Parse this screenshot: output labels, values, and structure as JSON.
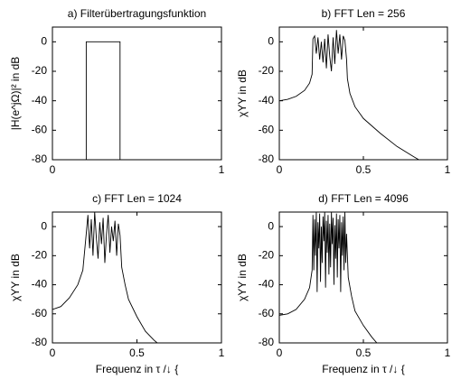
{
  "chart_data": [
    {
      "type": "line",
      "title": "a) Filterübertragungsfunktion",
      "ylabel": "|H(e^jΩ)|² in dB",
      "x": [
        0.2,
        0.2,
        0.4,
        0.4
      ],
      "values": [
        -80,
        0,
        0,
        -80
      ],
      "color": "#000000",
      "xlim": [
        0,
        1
      ],
      "xticks": [
        0,
        1
      ],
      "ylim": [
        -80,
        10
      ],
      "yticks": [
        -80,
        -60,
        -40,
        -20,
        0
      ]
    },
    {
      "type": "line",
      "title": "b) FFT Len = 256",
      "ylabel": "χYY in dB",
      "x": [
        0,
        0.05,
        0.1,
        0.15,
        0.18,
        0.195,
        0.2,
        0.21,
        0.22,
        0.23,
        0.24,
        0.25,
        0.26,
        0.27,
        0.28,
        0.29,
        0.3,
        0.31,
        0.32,
        0.33,
        0.34,
        0.35,
        0.36,
        0.37,
        0.38,
        0.39,
        0.4,
        0.405,
        0.42,
        0.45,
        0.5,
        0.6,
        0.7,
        0.8,
        0.83
      ],
      "values": [
        -40,
        -39,
        -37,
        -33,
        -28,
        -22,
        2,
        4,
        -8,
        3,
        -12,
        0,
        -14,
        2,
        -18,
        5,
        -10,
        -20,
        3,
        -15,
        8,
        -8,
        5,
        -12,
        4,
        1,
        -12,
        -25,
        -35,
        -44,
        -52,
        -62,
        -71,
        -78,
        -80
      ],
      "color": "#000000",
      "xlim": [
        0,
        1
      ],
      "xticks": [
        0,
        0.5,
        1
      ],
      "ylim": [
        -80,
        10
      ],
      "yticks": [
        -80,
        -60,
        -40,
        -20,
        0
      ]
    },
    {
      "type": "line",
      "title": "c) FFT Len = 1024",
      "ylabel": "χYY in dB",
      "xlabel": "Frequenz in τ /↓ {",
      "x": [
        0,
        0.05,
        0.1,
        0.15,
        0.18,
        0.2,
        0.21,
        0.22,
        0.23,
        0.24,
        0.25,
        0.26,
        0.27,
        0.28,
        0.29,
        0.3,
        0.31,
        0.32,
        0.33,
        0.34,
        0.35,
        0.36,
        0.37,
        0.38,
        0.39,
        0.4,
        0.41,
        0.43,
        0.45,
        0.5,
        0.55,
        0.6,
        0.62
      ],
      "values": [
        -57,
        -55,
        -49,
        -40,
        -30,
        -5,
        8,
        -15,
        5,
        -20,
        10,
        -8,
        -22,
        3,
        -12,
        6,
        -25,
        -5,
        8,
        -18,
        0,
        -10,
        4,
        -20,
        2,
        -6,
        -28,
        -40,
        -50,
        -62,
        -72,
        -78,
        -80
      ],
      "color": "#000000",
      "xlim": [
        0,
        1
      ],
      "xticks": [
        0,
        0.5,
        1
      ],
      "ylim": [
        -80,
        10
      ],
      "yticks": [
        -80,
        -60,
        -40,
        -20,
        0
      ]
    },
    {
      "type": "line",
      "title": "d) FFT Len = 4096",
      "ylabel": "χYY in dB",
      "xlabel": "Frequenz in τ /↓ {",
      "x": [
        0,
        0.05,
        0.1,
        0.15,
        0.18,
        0.195,
        0.2,
        0.205,
        0.21,
        0.215,
        0.22,
        0.225,
        0.23,
        0.235,
        0.24,
        0.245,
        0.25,
        0.255,
        0.26,
        0.265,
        0.27,
        0.275,
        0.28,
        0.285,
        0.29,
        0.295,
        0.3,
        0.305,
        0.31,
        0.315,
        0.32,
        0.325,
        0.33,
        0.335,
        0.34,
        0.345,
        0.35,
        0.355,
        0.36,
        0.365,
        0.37,
        0.375,
        0.38,
        0.385,
        0.39,
        0.395,
        0.4,
        0.41,
        0.43,
        0.45,
        0.5,
        0.55,
        0.58
      ],
      "values": [
        -61,
        -60,
        -57,
        -50,
        -42,
        -30,
        8,
        -30,
        5,
        -20,
        10,
        -45,
        3,
        -15,
        9,
        -38,
        0,
        -25,
        7,
        -10,
        10,
        -42,
        4,
        -18,
        8,
        -33,
        2,
        -28,
        10,
        -12,
        6,
        -40,
        1,
        -22,
        9,
        -35,
        5,
        -15,
        8,
        -45,
        3,
        -20,
        7,
        -30,
        10,
        -25,
        -5,
        -35,
        -48,
        -58,
        -68,
        -76,
        -80
      ],
      "color": "#000000",
      "xlim": [
        0,
        1
      ],
      "xticks": [
        0,
        0.5,
        1
      ],
      "ylim": [
        -80,
        10
      ],
      "yticks": [
        -80,
        -60,
        -40,
        -20,
        0
      ]
    }
  ]
}
